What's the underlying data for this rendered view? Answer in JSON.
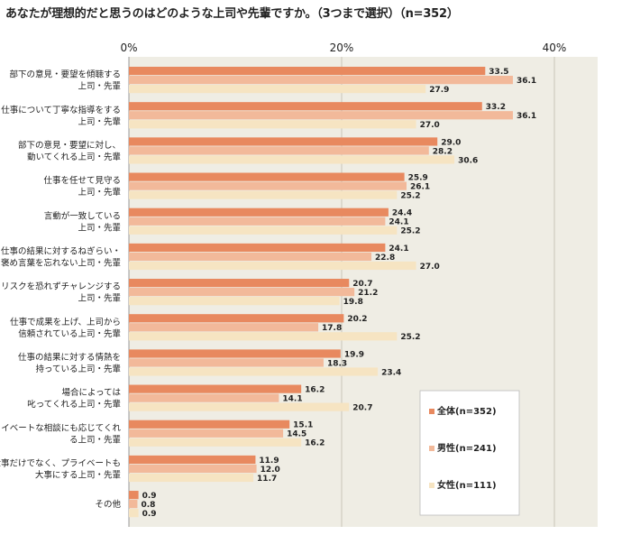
{
  "title": "あなたが理想的だと思うのはどのような上司や先輩ですか。（3つまで選択）（n=352）",
  "chart_data": {
    "type": "bar",
    "orientation": "horizontal",
    "title": "あなたが理想的だと思うのはどのような上司や先輩ですか。（3つまで選択）（n=352）",
    "xlim": [
      0,
      40
    ],
    "xticks": [
      "0%",
      "20%",
      "40%"
    ],
    "grid": true,
    "legend_position": "bottom-right",
    "categories": [
      [
        "部下の意見・要望を傾聴する",
        "上司・先輩"
      ],
      [
        "仕事について丁寧な指導をする",
        "上司・先輩"
      ],
      [
        "部下の意見・要望に対し、",
        "動いてくれる上司・先輩"
      ],
      [
        "仕事を任せて見守る",
        "上司・先輩"
      ],
      [
        "言動が一致している",
        "上司・先輩"
      ],
      [
        "仕事の結果に対するねぎらい・",
        "褒め言葉を忘れない上司・先輩"
      ],
      [
        "リスクを恐れずチャレンジする",
        "上司・先輩"
      ],
      [
        "仕事で成果を上げ、上司から",
        "信頼されている上司・先輩"
      ],
      [
        "仕事の結果に対する情熱を",
        "持っている上司・先輩"
      ],
      [
        "場合によっては",
        "叱ってくれる上司・先輩"
      ],
      [
        "プライベートな相談にも応じてくれ",
        "る上司・先輩"
      ],
      [
        "仕事だけでなく、プライベートも",
        "大事にする上司・先輩"
      ],
      [
        "その他"
      ]
    ],
    "series": [
      {
        "name": "全体(n=352)",
        "color": "#e8895f",
        "values": [
          33.5,
          33.2,
          29.0,
          25.9,
          24.4,
          24.1,
          20.7,
          20.2,
          19.9,
          16.2,
          15.1,
          11.9,
          0.9
        ]
      },
      {
        "name": "男性(n=241)",
        "color": "#f2b99a",
        "values": [
          36.1,
          36.1,
          28.2,
          26.1,
          24.1,
          22.8,
          21.2,
          17.8,
          18.3,
          14.1,
          14.5,
          12.0,
          0.8
        ]
      },
      {
        "name": "女性(n=111)",
        "color": "#f6e4c2",
        "values": [
          27.9,
          27.0,
          30.6,
          25.2,
          25.2,
          27.0,
          19.8,
          25.2,
          23.4,
          20.7,
          16.2,
          11.7,
          0.9
        ]
      }
    ],
    "colors": {
      "plot_bg": "#efede4",
      "grid": "#c8c5b8"
    }
  }
}
